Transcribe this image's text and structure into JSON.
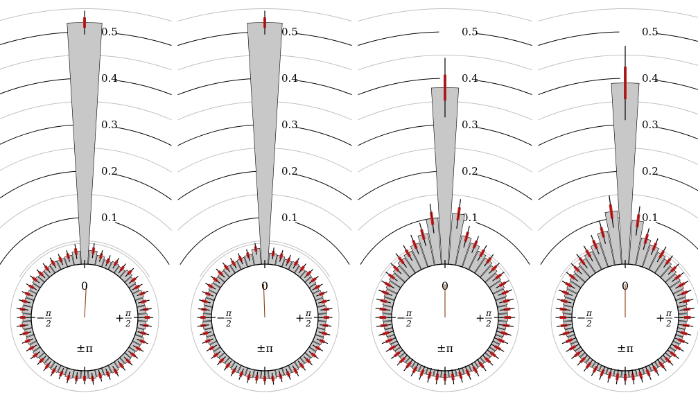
{
  "chart_data": {
    "type": "polar-histogram",
    "radial_ticks": [
      "0.1",
      "0.2",
      "0.3",
      "0.4",
      "0.5"
    ],
    "radial_tick_values": [
      0.1,
      0.2,
      0.3,
      0.4,
      0.5
    ],
    "angle_labels": {
      "top": "0",
      "left_sign": "−",
      "right_sign": "+",
      "pi": "π",
      "two": "2",
      "bottom": "±π"
    },
    "colors": {
      "bar_fill": "#c8c8c8",
      "error_bar": "#cc2222",
      "inner_circle": "#000000",
      "outer_circle": "#c0c0c0",
      "radial_line": "#8b3a10"
    },
    "bins": 48,
    "panels": [
      {
        "id": "panel-1",
        "mean_direction_deg": 3,
        "values": [
          0.52,
          0.03,
          0.022,
          0.017,
          0.02,
          0.018,
          0.022,
          0.018,
          0.016,
          0.02,
          0.017,
          0.018,
          0.02,
          0.018,
          0.016,
          0.02,
          0.019,
          0.017,
          0.018,
          0.016,
          0.019,
          0.017,
          0.015,
          0.018,
          0.016,
          0.017,
          0.019,
          0.016,
          0.018,
          0.017,
          0.016,
          0.019,
          0.017,
          0.018,
          0.017,
          0.02,
          0.018,
          0.02,
          0.019,
          0.018,
          0.017,
          0.02,
          0.018,
          0.019,
          0.021,
          0.02,
          0.022,
          0.028
        ],
        "errors": [
          0.016,
          0.01,
          0.008,
          0.008,
          0.008,
          0.008,
          0.008,
          0.008,
          0.008,
          0.008,
          0.008,
          0.008,
          0.008,
          0.008,
          0.008,
          0.008,
          0.008,
          0.008,
          0.008,
          0.008,
          0.008,
          0.008,
          0.008,
          0.008,
          0.008,
          0.008,
          0.008,
          0.008,
          0.008,
          0.008,
          0.008,
          0.008,
          0.008,
          0.008,
          0.008,
          0.008,
          0.008,
          0.008,
          0.008,
          0.008,
          0.008,
          0.008,
          0.008,
          0.008,
          0.008,
          0.008,
          0.008,
          0.01
        ]
      },
      {
        "id": "panel-2",
        "mean_direction_deg": -2,
        "values": [
          0.52,
          0.024,
          0.022,
          0.018,
          0.02,
          0.018,
          0.019,
          0.018,
          0.016,
          0.018,
          0.017,
          0.019,
          0.018,
          0.017,
          0.018,
          0.019,
          0.017,
          0.018,
          0.017,
          0.016,
          0.018,
          0.017,
          0.016,
          0.018,
          0.017,
          0.016,
          0.018,
          0.017,
          0.018,
          0.016,
          0.017,
          0.018,
          0.017,
          0.018,
          0.017,
          0.019,
          0.018,
          0.017,
          0.019,
          0.018,
          0.02,
          0.019,
          0.02,
          0.021,
          0.02,
          0.022,
          0.024,
          0.034
        ],
        "errors": [
          0.016,
          0.008,
          0.008,
          0.008,
          0.008,
          0.008,
          0.008,
          0.008,
          0.008,
          0.008,
          0.008,
          0.008,
          0.008,
          0.008,
          0.008,
          0.008,
          0.008,
          0.008,
          0.008,
          0.008,
          0.008,
          0.008,
          0.008,
          0.008,
          0.008,
          0.008,
          0.008,
          0.008,
          0.008,
          0.008,
          0.008,
          0.008,
          0.008,
          0.008,
          0.008,
          0.008,
          0.008,
          0.008,
          0.008,
          0.008,
          0.008,
          0.008,
          0.008,
          0.008,
          0.008,
          0.008,
          0.008,
          0.008
        ]
      },
      {
        "id": "panel-3",
        "mean_direction_deg": 0,
        "values": [
          0.38,
          0.11,
          0.065,
          0.055,
          0.045,
          0.04,
          0.035,
          0.03,
          0.028,
          0.025,
          0.022,
          0.02,
          0.02,
          0.018,
          0.017,
          0.016,
          0.016,
          0.015,
          0.015,
          0.014,
          0.015,
          0.014,
          0.014,
          0.014,
          0.014,
          0.014,
          0.014,
          0.014,
          0.015,
          0.014,
          0.015,
          0.015,
          0.016,
          0.016,
          0.017,
          0.018,
          0.019,
          0.02,
          0.022,
          0.024,
          0.027,
          0.03,
          0.034,
          0.04,
          0.045,
          0.055,
          0.07,
          0.1
        ],
        "errors": [
          0.04,
          0.02,
          0.015,
          0.012,
          0.012,
          0.01,
          0.01,
          0.01,
          0.01,
          0.01,
          0.01,
          0.01,
          0.01,
          0.01,
          0.01,
          0.01,
          0.01,
          0.01,
          0.01,
          0.01,
          0.01,
          0.01,
          0.01,
          0.01,
          0.01,
          0.01,
          0.01,
          0.01,
          0.01,
          0.01,
          0.01,
          0.01,
          0.01,
          0.01,
          0.01,
          0.01,
          0.01,
          0.01,
          0.01,
          0.01,
          0.01,
          0.01,
          0.01,
          0.012,
          0.012,
          0.014,
          0.016,
          0.02
        ]
      },
      {
        "id": "panel-4",
        "mean_direction_deg": 0,
        "values": [
          0.39,
          0.095,
          0.06,
          0.05,
          0.042,
          0.037,
          0.032,
          0.028,
          0.026,
          0.023,
          0.021,
          0.019,
          0.019,
          0.017,
          0.016,
          0.016,
          0.015,
          0.015,
          0.015,
          0.014,
          0.014,
          0.014,
          0.014,
          0.014,
          0.014,
          0.014,
          0.014,
          0.014,
          0.014,
          0.015,
          0.015,
          0.015,
          0.016,
          0.016,
          0.017,
          0.018,
          0.019,
          0.02,
          0.021,
          0.024,
          0.026,
          0.029,
          0.033,
          0.038,
          0.044,
          0.055,
          0.075,
          0.115
        ],
        "errors": [
          0.05,
          0.02,
          0.015,
          0.012,
          0.012,
          0.01,
          0.01,
          0.01,
          0.01,
          0.01,
          0.01,
          0.01,
          0.01,
          0.01,
          0.01,
          0.01,
          0.01,
          0.01,
          0.01,
          0.01,
          0.01,
          0.01,
          0.01,
          0.01,
          0.01,
          0.01,
          0.01,
          0.01,
          0.01,
          0.01,
          0.01,
          0.01,
          0.01,
          0.01,
          0.01,
          0.01,
          0.01,
          0.01,
          0.01,
          0.01,
          0.01,
          0.01,
          0.01,
          0.012,
          0.012,
          0.014,
          0.016,
          0.022
        ]
      }
    ]
  }
}
